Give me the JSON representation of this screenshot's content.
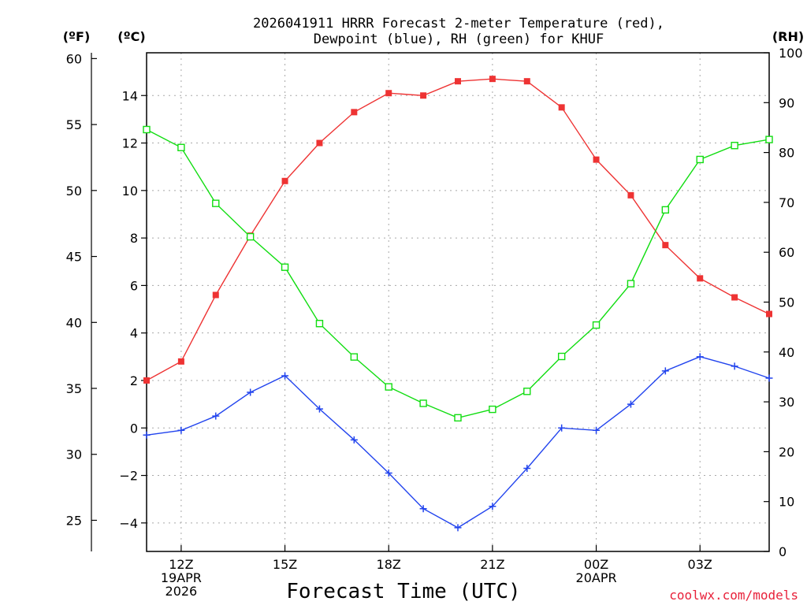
{
  "title_line1": "2026041911 HRRR Forecast 2-meter Temperature (red),",
  "title_line2": "Dewpoint (blue), RH (green) for KHUF",
  "units": {
    "fahrenheit": "(ºF)",
    "celsius": "(ºC)",
    "rh": "(RH)"
  },
  "x_axis": {
    "title": "Forecast Time (UTC)",
    "ticks": [
      {
        "hour": 12,
        "labels": [
          "12Z",
          "19APR",
          "2026"
        ]
      },
      {
        "hour": 15,
        "labels": [
          "15Z"
        ]
      },
      {
        "hour": 18,
        "labels": [
          "18Z"
        ]
      },
      {
        "hour": 21,
        "labels": [
          "21Z"
        ]
      },
      {
        "hour": 24,
        "labels": [
          "00Z",
          "20APR"
        ]
      },
      {
        "hour": 27,
        "labels": [
          "03Z"
        ]
      }
    ]
  },
  "credit": "coolwx.com/models",
  "colors": {
    "temperature": "#ee3333",
    "dewpoint": "#2244ee",
    "rh": "#11dd11"
  },
  "chart_data": {
    "type": "line",
    "title": "2026041911 HRRR Forecast 2-meter Temperature (red), Dewpoint (blue), RH (green) for KHUF",
    "xlabel": "Forecast Time (UTC)",
    "x": [
      11,
      12,
      13,
      14,
      15,
      16,
      17,
      18,
      19,
      20,
      21,
      22,
      23,
      24,
      25,
      26,
      27,
      28,
      29
    ],
    "xlim": [
      11,
      29
    ],
    "left_axis_celsius": {
      "ylim": [
        -5.2,
        15.8
      ],
      "ticks": [
        -4,
        -2,
        0,
        2,
        4,
        6,
        8,
        10,
        12,
        14
      ]
    },
    "left_axis_fahrenheit": {
      "ylim": [
        22.64,
        60.44
      ],
      "ticks": [
        25,
        30,
        35,
        40,
        45,
        50,
        55,
        60
      ]
    },
    "right_axis_rh": {
      "ylim": [
        0,
        100
      ],
      "ticks": [
        0,
        10,
        20,
        30,
        40,
        50,
        60,
        70,
        80,
        90,
        100
      ]
    },
    "series": [
      {
        "name": "Temperature",
        "axis": "celsius",
        "color": "#ee3333",
        "marker": "filled-square",
        "values": [
          2.0,
          2.8,
          5.6,
          8.1,
          10.4,
          12.0,
          13.3,
          14.1,
          14.0,
          14.6,
          14.7,
          14.6,
          13.5,
          11.3,
          9.8,
          7.7,
          6.3,
          5.5,
          4.8
        ]
      },
      {
        "name": "Dewpoint",
        "axis": "celsius",
        "color": "#2244ee",
        "marker": "plus",
        "values": [
          -0.3,
          -0.1,
          0.5,
          1.5,
          2.2,
          0.8,
          -0.5,
          -1.9,
          -3.4,
          -4.2,
          -3.3,
          -1.7,
          0.0,
          -0.1,
          1.0,
          2.4,
          3.0,
          2.6,
          2.1
        ]
      },
      {
        "name": "RH",
        "axis": "rh",
        "color": "#11dd11",
        "marker": "open-square",
        "values": [
          84.6,
          81.0,
          69.8,
          63.1,
          57.0,
          45.7,
          39.0,
          33.0,
          29.7,
          26.8,
          28.5,
          32.1,
          39.1,
          45.4,
          53.7,
          68.5,
          78.6,
          81.4,
          82.6
        ]
      }
    ]
  }
}
